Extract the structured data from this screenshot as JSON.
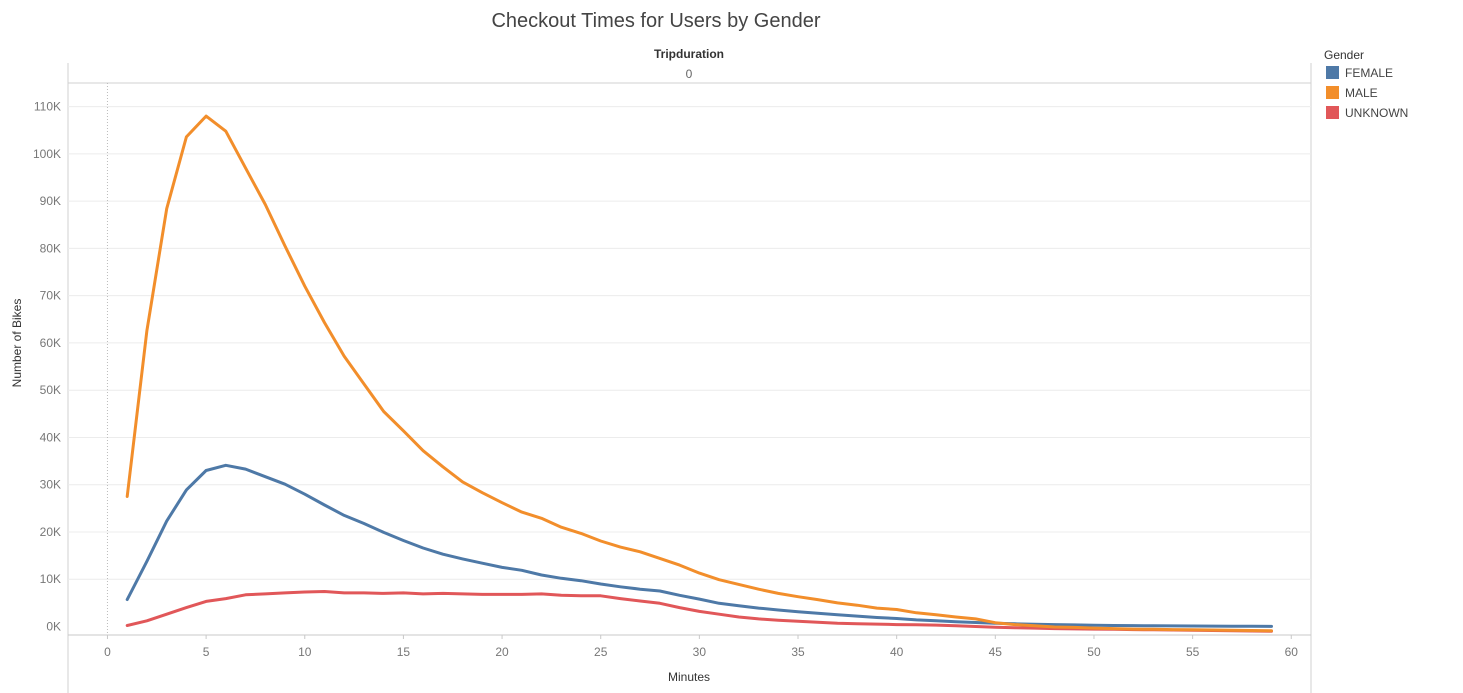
{
  "chart_data": {
    "type": "line",
    "title": "Checkout Times for Users by Gender",
    "column_header": "Tripduration",
    "column_value": "0",
    "xlabel": "Minutes",
    "ylabel": "Number of Bikes",
    "xlim": [
      -2,
      61
    ],
    "ylim": [
      -1800,
      115000
    ],
    "x_ticks": [
      0,
      5,
      10,
      15,
      20,
      25,
      30,
      35,
      40,
      45,
      50,
      55,
      60
    ],
    "y_ticks": [
      0,
      10000,
      20000,
      30000,
      40000,
      50000,
      60000,
      70000,
      80000,
      90000,
      100000,
      110000
    ],
    "y_tick_labels": [
      "0K",
      "10K",
      "20K",
      "30K",
      "40K",
      "50K",
      "60K",
      "70K",
      "80K",
      "90K",
      "100K",
      "110K"
    ],
    "grid": "horizontal",
    "legend_title": "Gender",
    "legend_position": "right",
    "x": [
      1,
      2,
      3,
      4,
      5,
      6,
      7,
      8,
      9,
      10,
      11,
      12,
      13,
      14,
      15,
      16,
      17,
      18,
      19,
      20,
      21,
      22,
      23,
      24,
      25,
      26,
      27,
      28,
      29,
      30,
      31,
      32,
      33,
      34,
      35,
      36,
      37,
      38,
      39,
      40,
      41,
      42,
      43,
      44,
      45,
      46,
      47,
      48,
      49,
      50,
      51,
      52,
      53,
      54,
      55,
      56,
      57,
      58,
      59
    ],
    "series": [
      {
        "name": "FEMALE",
        "color": "#4e79a7",
        "values": [
          5700,
          13800,
          22300,
          28900,
          33000,
          34100,
          33300,
          31700,
          30100,
          28000,
          25700,
          23500,
          21800,
          19900,
          18200,
          16600,
          15300,
          14300,
          13400,
          12500,
          11900,
          10900,
          10200,
          9700,
          9000,
          8400,
          7900,
          7500,
          6600,
          5800,
          4900,
          4400,
          3900,
          3500,
          3100,
          2800,
          2500,
          2200,
          1900,
          1700,
          1400,
          1200,
          1000,
          850,
          700,
          580,
          480,
          400,
          330,
          270,
          220,
          180,
          150,
          120,
          100,
          80,
          60,
          40,
          30
        ]
      },
      {
        "name": "MALE",
        "color": "#f28e2b",
        "values": [
          27500,
          62600,
          88400,
          103600,
          108000,
          104800,
          97000,
          89300,
          80500,
          72000,
          64300,
          57200,
          51300,
          45500,
          41400,
          37200,
          33800,
          30600,
          28300,
          26200,
          24200,
          22900,
          21000,
          19700,
          18100,
          16800,
          15800,
          14400,
          13000,
          11300,
          9900,
          8900,
          7900,
          7000,
          6300,
          5700,
          5000,
          4500,
          3900,
          3600,
          2900,
          2500,
          2000,
          1600,
          800,
          400,
          150,
          -100,
          -200,
          -350,
          -450,
          -550,
          -600,
          -650,
          -700,
          -750,
          -800,
          -850,
          -900
        ]
      },
      {
        "name": "UNKNOWN",
        "color": "#e15759",
        "values": [
          200,
          1200,
          2600,
          4000,
          5300,
          5900,
          6700,
          6900,
          7100,
          7300,
          7400,
          7100,
          7100,
          7000,
          7100,
          6900,
          7000,
          6900,
          6800,
          6800,
          6800,
          6900,
          6600,
          6500,
          6500,
          5900,
          5400,
          4900,
          4000,
          3200,
          2600,
          2000,
          1600,
          1300,
          1100,
          900,
          700,
          600,
          500,
          400,
          350,
          300,
          150,
          0,
          -150,
          -250,
          -350,
          -450,
          -500,
          -550,
          -600,
          -650,
          -700,
          -750,
          -800,
          -850,
          -900,
          -950,
          -1000
        ]
      }
    ]
  }
}
